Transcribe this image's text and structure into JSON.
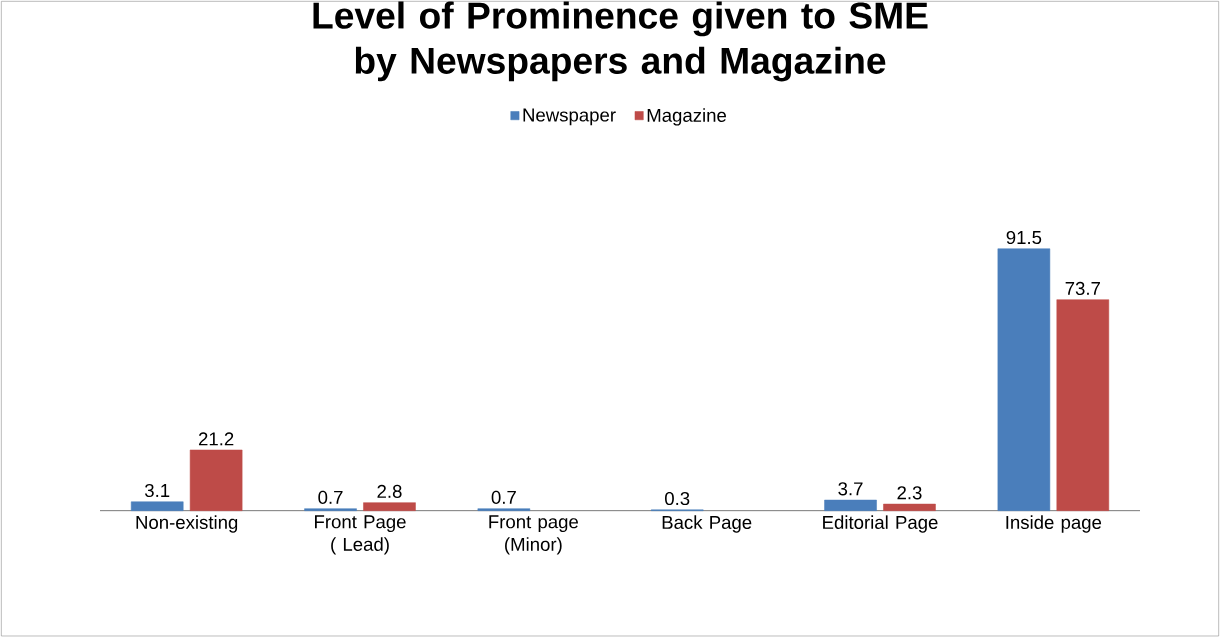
{
  "chart_data": {
    "type": "bar",
    "title": "Level of Prominence given to SME by Newspapers and Magazine",
    "categories": [
      "Non-existing",
      "Front Page ( Lead)",
      "Front page (Minor)",
      "Back Page",
      "Editorial Page",
      "Inside page"
    ],
    "series": [
      {
        "name": "Newspaper",
        "color": "#4a7ebb",
        "values": [
          3.1,
          0.7,
          0.7,
          0.3,
          3.7,
          91.5
        ]
      },
      {
        "name": "Magazine",
        "color": "#be4b48",
        "values": [
          21.2,
          2.8,
          null,
          null,
          2.3,
          73.7
        ]
      }
    ],
    "data_labels": true,
    "legend": "top"
  }
}
